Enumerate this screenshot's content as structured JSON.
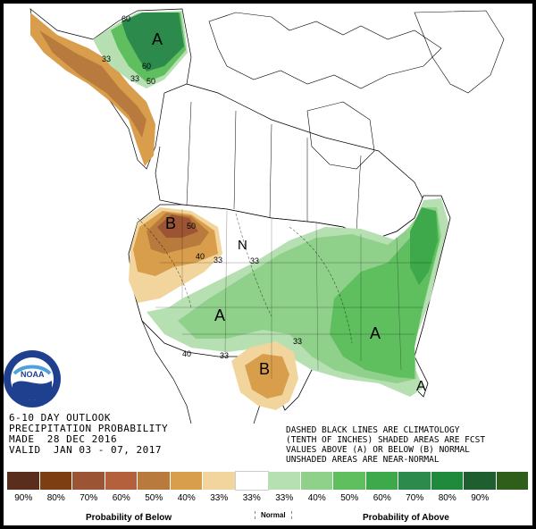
{
  "map": {
    "region_labels": [
      {
        "id": "alaska-above",
        "text": "A"
      },
      {
        "id": "west-below",
        "text": "B"
      },
      {
        "id": "southwest-above",
        "text": "A"
      },
      {
        "id": "southeast-above",
        "text": "A"
      },
      {
        "id": "texas-below",
        "text": "B"
      },
      {
        "id": "northeast-above",
        "text": "A"
      },
      {
        "id": "normal-north",
        "text": "N"
      }
    ],
    "contour_labels": [
      "60",
      "60",
      "50",
      "33",
      "33",
      "50",
      "40",
      "33",
      "33",
      "40",
      "33",
      "33"
    ]
  },
  "info": {
    "line1": "6-10 DAY OUTLOOK",
    "line2": "PRECIPITATION PROBABILITY",
    "line3": "MADE  28 DEC 2016",
    "line4": "VALID  JAN 03 - 07, 2017"
  },
  "note": {
    "line1": "DASHED BLACK LINES ARE CLIMATOLOGY",
    "line2": "(TENTH OF INCHES) SHADED AREAS ARE FCST",
    "line3": "VALUES ABOVE (A) OR BELOW (B) NORMAL",
    "line4": "UNSHADED AREAS ARE NEAR-NORMAL"
  },
  "legend": {
    "bins": [
      {
        "label": "90%",
        "color": "#5a2e1c"
      },
      {
        "label": "80%",
        "color": "#7d3f12"
      },
      {
        "label": "70%",
        "color": "#9c5534"
      },
      {
        "label": "60%",
        "color": "#b4603c"
      },
      {
        "label": "50%",
        "color": "#b97a3d"
      },
      {
        "label": "40%",
        "color": "#d99e4c"
      },
      {
        "label": "33%",
        "color": "#f2d59c"
      },
      {
        "label": "33%",
        "color": "#ffffff"
      },
      {
        "label": "33%",
        "color": "#b6e0b2"
      },
      {
        "label": "40%",
        "color": "#8fd18a"
      },
      {
        "label": "50%",
        "color": "#5fbf5f"
      },
      {
        "label": "60%",
        "color": "#3da94a"
      },
      {
        "label": "70%",
        "color": "#2c8a4d"
      },
      {
        "label": "80%",
        "color": "#1f8a3c"
      },
      {
        "label": "90%",
        "color": "#1f5e2e"
      },
      {
        "label": "",
        "color": "#2f5e1a"
      }
    ],
    "below_caption": "Probability of Below",
    "normal_caption": "Normal",
    "above_caption": "Probability of Above"
  },
  "logo": {
    "text": "NOAA"
  }
}
